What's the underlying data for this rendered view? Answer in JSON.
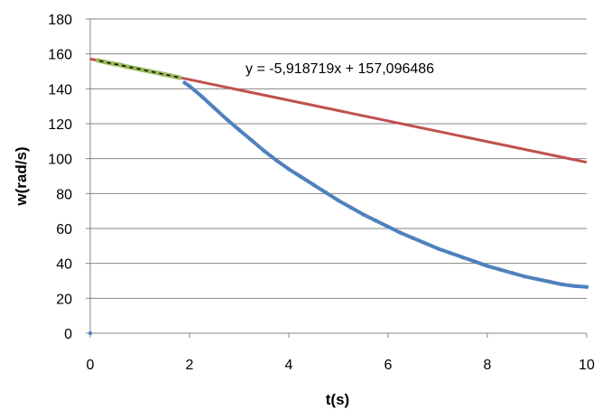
{
  "chart_data": {
    "type": "scatter",
    "xlabel": "t(s)",
    "ylabel": "w(rad/s)",
    "xlim": [
      0,
      10
    ],
    "ylim": [
      0,
      180
    ],
    "x_ticks": [
      0,
      2,
      4,
      6,
      8,
      10
    ],
    "y_ticks": [
      0,
      20,
      40,
      60,
      80,
      100,
      120,
      140,
      160,
      180
    ],
    "grid": "horizontal",
    "legend": "none",
    "trendline_equation": "y = -5,918719x + 157,096486",
    "trendline": {
      "slope": -5.918719,
      "intercept": 157.096486,
      "x_range": [
        0,
        10
      ]
    },
    "series": [
      {
        "role": "fit",
        "color": "#9bbb59",
        "x": [
          0.15,
          0.3,
          0.45,
          0.6,
          0.75,
          0.9,
          1.05,
          1.2,
          1.35,
          1.5,
          1.65,
          1.8
        ],
        "y": [
          156.3,
          155.3,
          154.4,
          153.6,
          152.6,
          151.8,
          150.9,
          150.0,
          149.1,
          148.2,
          147.3,
          146.4
        ]
      },
      {
        "role": "measured",
        "color": "#4f81bd",
        "x": [
          0.0,
          1.9,
          2.0,
          2.25,
          2.5,
          2.75,
          3.0,
          3.25,
          3.5,
          3.75,
          4.0,
          4.25,
          4.5,
          4.75,
          5.0,
          5.25,
          5.5,
          5.75,
          6.0,
          6.25,
          6.5,
          6.75,
          7.0,
          7.25,
          7.5,
          7.75,
          8.0,
          8.25,
          8.5,
          8.75,
          9.0,
          9.25,
          9.5,
          9.75,
          10.0
        ],
        "y": [
          0.0,
          143.5,
          141.5,
          135.5,
          129.0,
          122.5,
          116.5,
          110.5,
          104.5,
          99.0,
          94.0,
          89.5,
          85.0,
          80.5,
          76.0,
          72.0,
          68.0,
          64.5,
          61.0,
          57.5,
          54.5,
          51.5,
          48.5,
          46.0,
          43.5,
          41.0,
          38.5,
          36.5,
          34.5,
          32.5,
          31.0,
          29.5,
          28.0,
          27.0,
          26.5
        ]
      }
    ],
    "colors": {
      "trendline": "#c0504d",
      "fit_line": "#000000",
      "axis": "#868686",
      "grid": "#868686"
    }
  }
}
